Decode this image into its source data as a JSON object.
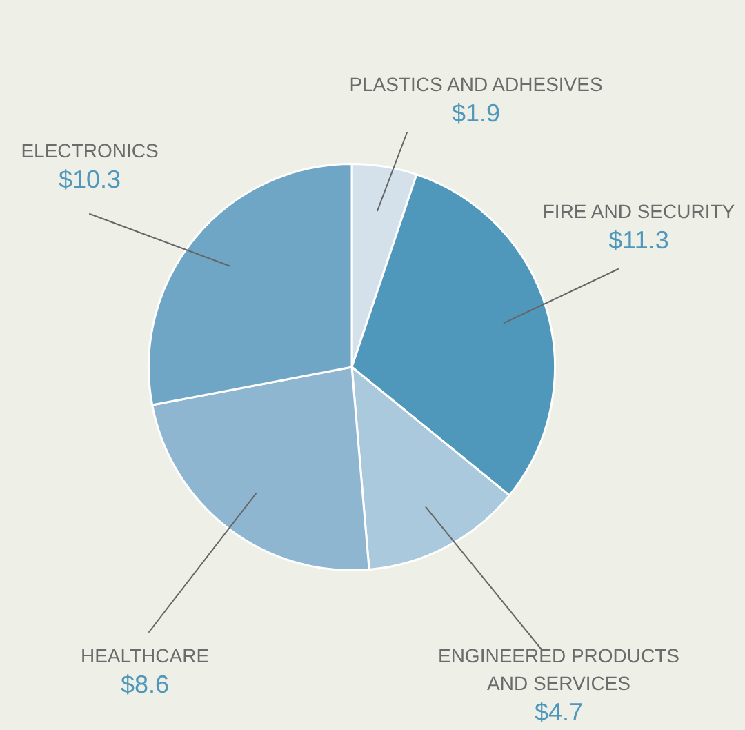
{
  "chart_data": {
    "type": "pie",
    "categories": [
      "PLASTICS AND ADHESIVES",
      "FIRE AND SECURITY",
      "ENGINEERED PRODUCTS AND SERVICES",
      "HEALTHCARE",
      "ELECTRONICS"
    ],
    "values": [
      1.9,
      11.3,
      4.7,
      8.6,
      10.3
    ],
    "value_labels": [
      "$1.9",
      "$11.3",
      "$4.7",
      "$8.6",
      "$10.3"
    ],
    "colors": [
      "#d4e1ea",
      "#4f97bb",
      "#abc9dc",
      "#8fb6d1",
      "#6fa6c6"
    ],
    "legend": false
  }
}
